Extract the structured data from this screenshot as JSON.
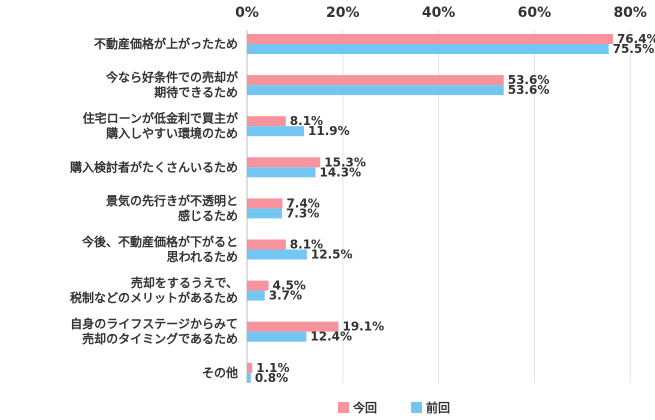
{
  "chart_data": {
    "type": "bar",
    "orientation": "horizontal",
    "xlim": [
      0,
      80
    ],
    "tick_labels": [
      "0%",
      "20%",
      "40%",
      "60%",
      "80%"
    ],
    "grid": true,
    "legend_position": "bottom",
    "colors": {
      "current": "#f7939c",
      "previous": "#74c6f2"
    },
    "categories": [
      [
        "不動産価格が上がったため"
      ],
      [
        "今なら好条件での売却が",
        "期待できるため"
      ],
      [
        "住宅ローンが低金利で買主が",
        "購入しやすい環境のため"
      ],
      [
        "購入検討者がたくさんいるため"
      ],
      [
        "景気の先行きが不透明と",
        "感じるため"
      ],
      [
        "今後、不動産価格が下がると",
        "思われるため"
      ],
      [
        "売却をするうえで、",
        "税制などのメリットがあるため"
      ],
      [
        "自身のライフステージからみて",
        "売却のタイミングであるため"
      ],
      [
        "その他"
      ]
    ],
    "series": [
      {
        "name": "今回",
        "values": [
          76.4,
          53.6,
          8.1,
          15.3,
          7.4,
          8.1,
          4.5,
          19.1,
          1.1
        ],
        "labels": [
          "76.4%",
          "53.6%",
          "8.1%",
          "15.3%",
          "7.4%",
          "8.1%",
          "4.5%",
          "19.1%",
          "1.1%"
        ]
      },
      {
        "name": "前回",
        "values": [
          75.5,
          53.6,
          11.9,
          14.3,
          7.3,
          12.5,
          3.7,
          12.4,
          0.8
        ],
        "labels": [
          "75.5%",
          "53.6%",
          "11.9%",
          "14.3%",
          "7.3%",
          "12.5%",
          "3.7%",
          "12.4%",
          "0.8%"
        ]
      }
    ]
  }
}
